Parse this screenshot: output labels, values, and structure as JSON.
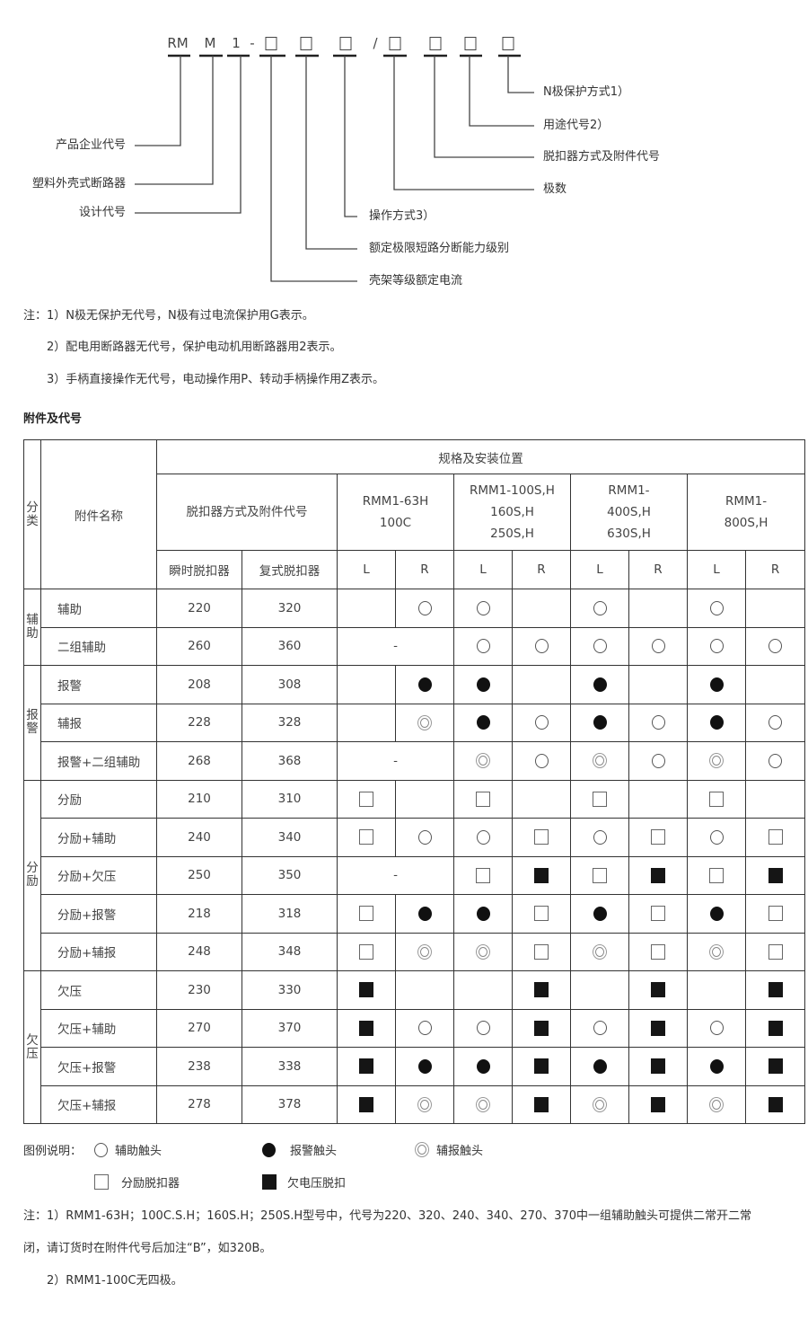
{
  "model_code": {
    "parts": [
      "RM",
      "M",
      "1",
      "-",
      "□",
      "□",
      "□",
      "/",
      "□",
      "□",
      "□",
      "□"
    ]
  },
  "diagram_labels": {
    "n_pole": "N极保护方式1）",
    "usage": "用途代号2）",
    "release": "脱扣器方式及附件代号",
    "poles": "极数",
    "enterprise": "产品企业代号",
    "mccb": "塑料外壳式断路器",
    "design": "设计代号",
    "operation": "操作方式3）",
    "breaking": "额定极限短路分断能力级别",
    "frame": "壳架等级额定电流"
  },
  "notes_top": [
    "注：1）N极无保护无代号，N极有过电流保护用G表示。",
    "2）配电用断路器无代号，保护电动机用断路器用2表示。",
    "3）手柄直接操作无代号，电动操作用P、转动手柄操作用Z表示。"
  ],
  "section_title": "附件及代号",
  "table": {
    "col_category": "分类",
    "col_name": "附件名称",
    "spec_header": "规格及安装位置",
    "code_header": "脱扣器方式及附件代号",
    "models": [
      "RMM1-63H\n100C",
      "RMM1-100S,H\n160S,H\n250S,H",
      "RMM1-\n400S,H\n630S,H",
      "RMM1-\n800S,H"
    ],
    "instant": "瞬时脱扣器",
    "compound": "复式脱扣器",
    "L": "L",
    "R": "R",
    "dash": "-",
    "groups": [
      {
        "name": "辅助",
        "rows": [
          {
            "name": "辅助",
            "c1": "220",
            "c2": "320",
            "marks": [
              "",
              "aux",
              "aux",
              "",
              "aux",
              "",
              "aux",
              ""
            ]
          },
          {
            "name": "二组辅助",
            "c1": "260",
            "c2": "360",
            "marks": [
              "-",
              "aux",
              "aux",
              "aux",
              "aux",
              "aux",
              "aux"
            ]
          }
        ]
      },
      {
        "name": "报警",
        "rows": [
          {
            "name": "报警",
            "c1": "208",
            "c2": "308",
            "marks": [
              "",
              "alarm",
              "alarm",
              "",
              "alarm",
              "",
              "alarm",
              ""
            ]
          },
          {
            "name": "辅报",
            "c1": "228",
            "c2": "328",
            "marks": [
              "",
              "auxalarm",
              "alarm",
              "aux",
              "alarm",
              "aux",
              "alarm",
              "aux"
            ]
          },
          {
            "name": "报警+二组辅助",
            "c1": "268",
            "c2": "368",
            "marks": [
              "-",
              "auxalarm",
              "aux",
              "auxalarm",
              "aux",
              "auxalarm",
              "aux"
            ]
          }
        ]
      },
      {
        "name": "分励",
        "rows": [
          {
            "name": "分励",
            "c1": "210",
            "c2": "310",
            "marks": [
              "shunt",
              "",
              "shunt",
              "",
              "shunt",
              "",
              "shunt",
              ""
            ]
          },
          {
            "name": "分励+辅助",
            "c1": "240",
            "c2": "340",
            "marks": [
              "shunt",
              "aux",
              "aux",
              "shunt",
              "aux",
              "shunt",
              "aux",
              "shunt"
            ]
          },
          {
            "name": "分励+欠压",
            "c1": "250",
            "c2": "350",
            "marks": [
              "-",
              "shunt",
              "uv",
              "shunt",
              "uv",
              "shunt",
              "uv"
            ]
          },
          {
            "name": "分励+报警",
            "c1": "218",
            "c2": "318",
            "marks": [
              "shunt",
              "alarm",
              "alarm",
              "shunt",
              "alarm",
              "shunt",
              "alarm",
              "shunt"
            ]
          },
          {
            "name": "分励+辅报",
            "c1": "248",
            "c2": "348",
            "marks": [
              "shunt",
              "auxalarm",
              "auxalarm",
              "shunt",
              "auxalarm",
              "shunt",
              "auxalarm",
              "shunt"
            ]
          }
        ]
      },
      {
        "name": "欠压",
        "rows": [
          {
            "name": "欠压",
            "c1": "230",
            "c2": "330",
            "marks": [
              "uv",
              "",
              "",
              "uv",
              "",
              "uv",
              "",
              "uv"
            ]
          },
          {
            "name": "欠压+辅助",
            "c1": "270",
            "c2": "370",
            "marks": [
              "uv",
              "aux",
              "aux",
              "uv",
              "aux",
              "uv",
              "aux",
              "uv"
            ]
          },
          {
            "name": "欠压+报警",
            "c1": "238",
            "c2": "338",
            "marks": [
              "uv",
              "alarm",
              "alarm",
              "uv",
              "alarm",
              "uv",
              "alarm",
              "uv"
            ]
          },
          {
            "name": "欠压+辅报",
            "c1": "278",
            "c2": "378",
            "marks": [
              "uv",
              "auxalarm",
              "auxalarm",
              "uv",
              "auxalarm",
              "uv",
              "auxalarm",
              "uv"
            ]
          }
        ]
      }
    ]
  },
  "legend": {
    "title": "图例说明：",
    "aux": "辅助触头",
    "alarm": "报警触头",
    "auxalarm": "辅报触头",
    "shunt": "分励脱扣器",
    "uv": "欠电压脱扣"
  },
  "notes_bottom": [
    "注：1）RMM1-63H；100C.S.H；160S.H；250S.H型号中，代号为220、320、240、340、270、370中一组辅助触头可提供二常开二常",
    "闭，请订货时在附件代号后加注“B”，如320B。",
    "2）RMM1-100C无四极。"
  ]
}
